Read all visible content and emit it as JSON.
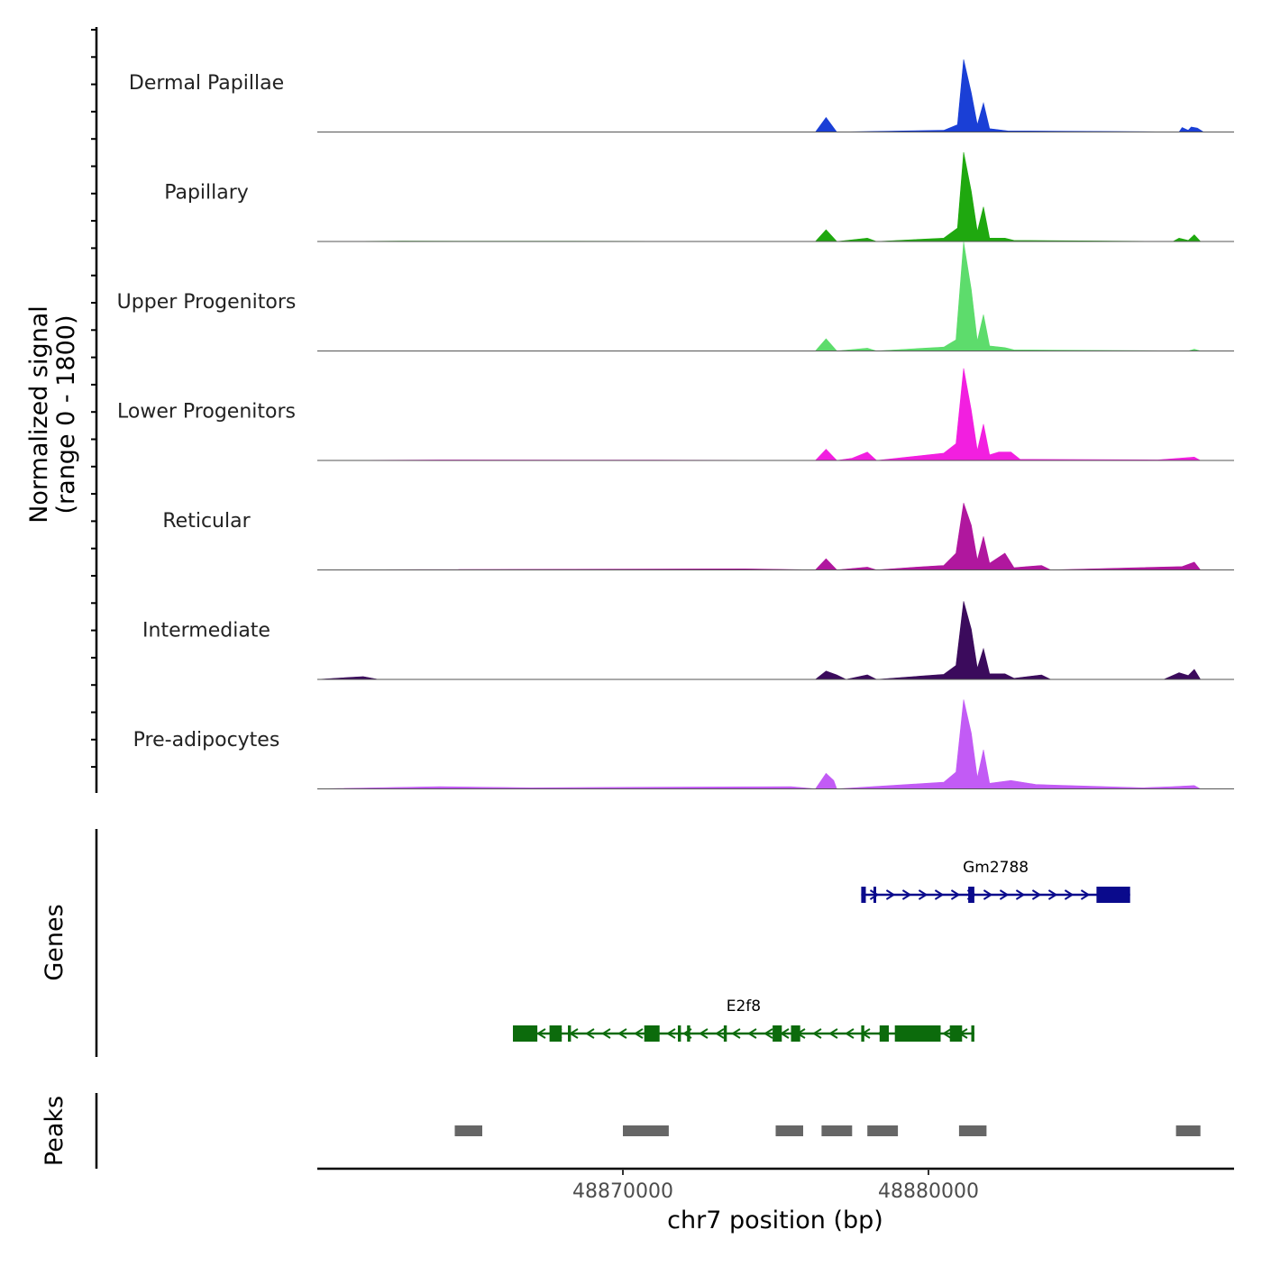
{
  "chart_data": {
    "type": "area",
    "title": "",
    "region": {
      "chrom": "chr7",
      "xlim": [
        48860000,
        48890000
      ]
    },
    "xlabel": "chr7 position (bp)",
    "x_ticks": [
      48870000,
      48880000
    ],
    "x_tick_labels": [
      "48870000",
      "48880000"
    ],
    "signal_panel": {
      "ylabel_line1": "Normalized signal",
      "ylabel_line2": "(range 0 - 1800)",
      "ylim": [
        0,
        1800
      ]
    },
    "genes_panel": {
      "ylabel": "Genes"
    },
    "peaks_panel": {
      "ylabel": "Peaks"
    },
    "series": [
      {
        "name": "Dermal Papillae",
        "color": "#1a3fd6",
        "points": [
          [
            48860000,
            0
          ],
          [
            48866000,
            4
          ],
          [
            48871500,
            3
          ],
          [
            48876300,
            0
          ],
          [
            48876650,
            260
          ],
          [
            48877000,
            0
          ],
          [
            48880500,
            30
          ],
          [
            48880950,
            130
          ],
          [
            48881150,
            1300
          ],
          [
            48881400,
            700
          ],
          [
            48881600,
            130
          ],
          [
            48881800,
            520
          ],
          [
            48882000,
            60
          ],
          [
            48882600,
            20
          ],
          [
            48886500,
            8
          ],
          [
            48888200,
            0
          ],
          [
            48888300,
            80
          ],
          [
            48888500,
            30
          ],
          [
            48888600,
            90
          ],
          [
            48888800,
            70
          ],
          [
            48889000,
            0
          ],
          [
            48890000,
            0
          ]
        ]
      },
      {
        "name": "Papillary",
        "color": "#1fa80f",
        "points": [
          [
            48860000,
            0
          ],
          [
            48862800,
            6
          ],
          [
            48871000,
            3
          ],
          [
            48876300,
            0
          ],
          [
            48876650,
            210
          ],
          [
            48877000,
            0
          ],
          [
            48878000,
            60
          ],
          [
            48878300,
            0
          ],
          [
            48880500,
            60
          ],
          [
            48880950,
            240
          ],
          [
            48881150,
            1600
          ],
          [
            48881400,
            900
          ],
          [
            48881600,
            180
          ],
          [
            48881800,
            620
          ],
          [
            48882000,
            60
          ],
          [
            48882500,
            60
          ],
          [
            48882800,
            20
          ],
          [
            48888000,
            0
          ],
          [
            48888200,
            60
          ],
          [
            48888500,
            20
          ],
          [
            48888700,
            120
          ],
          [
            48888900,
            0
          ],
          [
            48890000,
            0
          ]
        ]
      },
      {
        "name": "Upper Progenitors",
        "color": "#5ddc6c",
        "points": [
          [
            48860000,
            0
          ],
          [
            48876300,
            0
          ],
          [
            48876650,
            220
          ],
          [
            48877000,
            0
          ],
          [
            48878000,
            50
          ],
          [
            48878300,
            0
          ],
          [
            48880500,
            70
          ],
          [
            48880900,
            200
          ],
          [
            48881150,
            1950
          ],
          [
            48881400,
            1100
          ],
          [
            48881600,
            180
          ],
          [
            48881800,
            650
          ],
          [
            48882000,
            90
          ],
          [
            48882500,
            60
          ],
          [
            48882800,
            20
          ],
          [
            48888500,
            0
          ],
          [
            48888700,
            30
          ],
          [
            48888900,
            0
          ],
          [
            48890000,
            0
          ]
        ]
      },
      {
        "name": "Lower Progenitors",
        "color": "#f21fe0",
        "points": [
          [
            48860000,
            0
          ],
          [
            48864000,
            10
          ],
          [
            48871000,
            6
          ],
          [
            48876300,
            0
          ],
          [
            48876650,
            200
          ],
          [
            48877000,
            0
          ],
          [
            48877500,
            40
          ],
          [
            48878000,
            150
          ],
          [
            48878300,
            0
          ],
          [
            48880500,
            130
          ],
          [
            48880900,
            300
          ],
          [
            48881150,
            1650
          ],
          [
            48881400,
            900
          ],
          [
            48881600,
            180
          ],
          [
            48881800,
            650
          ],
          [
            48882000,
            100
          ],
          [
            48882300,
            150
          ],
          [
            48882700,
            150
          ],
          [
            48883000,
            20
          ],
          [
            48887500,
            10
          ],
          [
            48888700,
            60
          ],
          [
            48888900,
            0
          ],
          [
            48890000,
            0
          ]
        ]
      },
      {
        "name": "Reticular",
        "color": "#b0179e",
        "points": [
          [
            48860000,
            0
          ],
          [
            48874000,
            20
          ],
          [
            48876300,
            0
          ],
          [
            48876650,
            200
          ],
          [
            48877000,
            0
          ],
          [
            48878000,
            50
          ],
          [
            48878300,
            0
          ],
          [
            48879600,
            50
          ],
          [
            48880500,
            80
          ],
          [
            48880900,
            300
          ],
          [
            48881150,
            1200
          ],
          [
            48881400,
            800
          ],
          [
            48881600,
            180
          ],
          [
            48881800,
            600
          ],
          [
            48882000,
            120
          ],
          [
            48882500,
            300
          ],
          [
            48882800,
            40
          ],
          [
            48883700,
            80
          ],
          [
            48884000,
            0
          ],
          [
            48888300,
            60
          ],
          [
            48888700,
            140
          ],
          [
            48888900,
            0
          ],
          [
            48890000,
            0
          ]
        ]
      },
      {
        "name": "Intermediate",
        "color": "#3b0b5c",
        "points": [
          [
            48860000,
            0
          ],
          [
            48861500,
            50
          ],
          [
            48862000,
            0
          ],
          [
            48876300,
            0
          ],
          [
            48876650,
            150
          ],
          [
            48877000,
            80
          ],
          [
            48877300,
            0
          ],
          [
            48878000,
            80
          ],
          [
            48878300,
            0
          ],
          [
            48880500,
            90
          ],
          [
            48880900,
            250
          ],
          [
            48881150,
            1400
          ],
          [
            48881400,
            900
          ],
          [
            48881600,
            200
          ],
          [
            48881800,
            550
          ],
          [
            48882000,
            100
          ],
          [
            48882500,
            100
          ],
          [
            48882800,
            20
          ],
          [
            48883700,
            80
          ],
          [
            48884000,
            0
          ],
          [
            48887700,
            0
          ],
          [
            48888200,
            120
          ],
          [
            48888500,
            70
          ],
          [
            48888700,
            180
          ],
          [
            48888900,
            0
          ],
          [
            48890000,
            0
          ]
        ]
      },
      {
        "name": "Pre-adipocytes",
        "color": "#c25bf5",
        "points": [
          [
            48860000,
            0
          ],
          [
            48864000,
            40
          ],
          [
            48867000,
            20
          ],
          [
            48871000,
            30
          ],
          [
            48875500,
            40
          ],
          [
            48876300,
            0
          ],
          [
            48876650,
            280
          ],
          [
            48876900,
            150
          ],
          [
            48877000,
            0
          ],
          [
            48880500,
            120
          ],
          [
            48880900,
            300
          ],
          [
            48881150,
            1600
          ],
          [
            48881400,
            1000
          ],
          [
            48881600,
            200
          ],
          [
            48881800,
            700
          ],
          [
            48882000,
            100
          ],
          [
            48882700,
            150
          ],
          [
            48883500,
            80
          ],
          [
            48884000,
            70
          ],
          [
            48887000,
            20
          ],
          [
            48888000,
            40
          ],
          [
            48888700,
            60
          ],
          [
            48888900,
            0
          ],
          [
            48890000,
            0
          ]
        ]
      }
    ],
    "genes": [
      {
        "name": "Gm2788",
        "strand": "+",
        "start": 48877800,
        "end": 48886600,
        "color": "#0a0a8c",
        "exons": [
          [
            48877800,
            48877950
          ],
          [
            48878200,
            48878280
          ],
          [
            48881300,
            48881500
          ],
          [
            48885500,
            48886600
          ]
        ]
      },
      {
        "name": "E2f8",
        "strand": "-",
        "start": 48866400,
        "end": 48881500,
        "color": "#0c6b0c",
        "exons": [
          [
            48866400,
            48867200
          ],
          [
            48867600,
            48868000
          ],
          [
            48868200,
            48868300
          ],
          [
            48870700,
            48871200
          ],
          [
            48871800,
            48871900
          ],
          [
            48872100,
            48872200
          ],
          [
            48873300,
            48873400
          ],
          [
            48874900,
            48875200
          ],
          [
            48875500,
            48875800
          ],
          [
            48877800,
            48877900
          ],
          [
            48878400,
            48878700
          ],
          [
            48878900,
            48880400
          ],
          [
            48880700,
            48881100
          ],
          [
            48881400,
            48881500
          ]
        ]
      }
    ],
    "peaks": [
      [
        48864500,
        48865400
      ],
      [
        48870000,
        48871500
      ],
      [
        48875000,
        48875900
      ],
      [
        48876500,
        48877500
      ],
      [
        48878000,
        48879000
      ],
      [
        48881000,
        48881900
      ],
      [
        48888100,
        48888900
      ]
    ]
  }
}
